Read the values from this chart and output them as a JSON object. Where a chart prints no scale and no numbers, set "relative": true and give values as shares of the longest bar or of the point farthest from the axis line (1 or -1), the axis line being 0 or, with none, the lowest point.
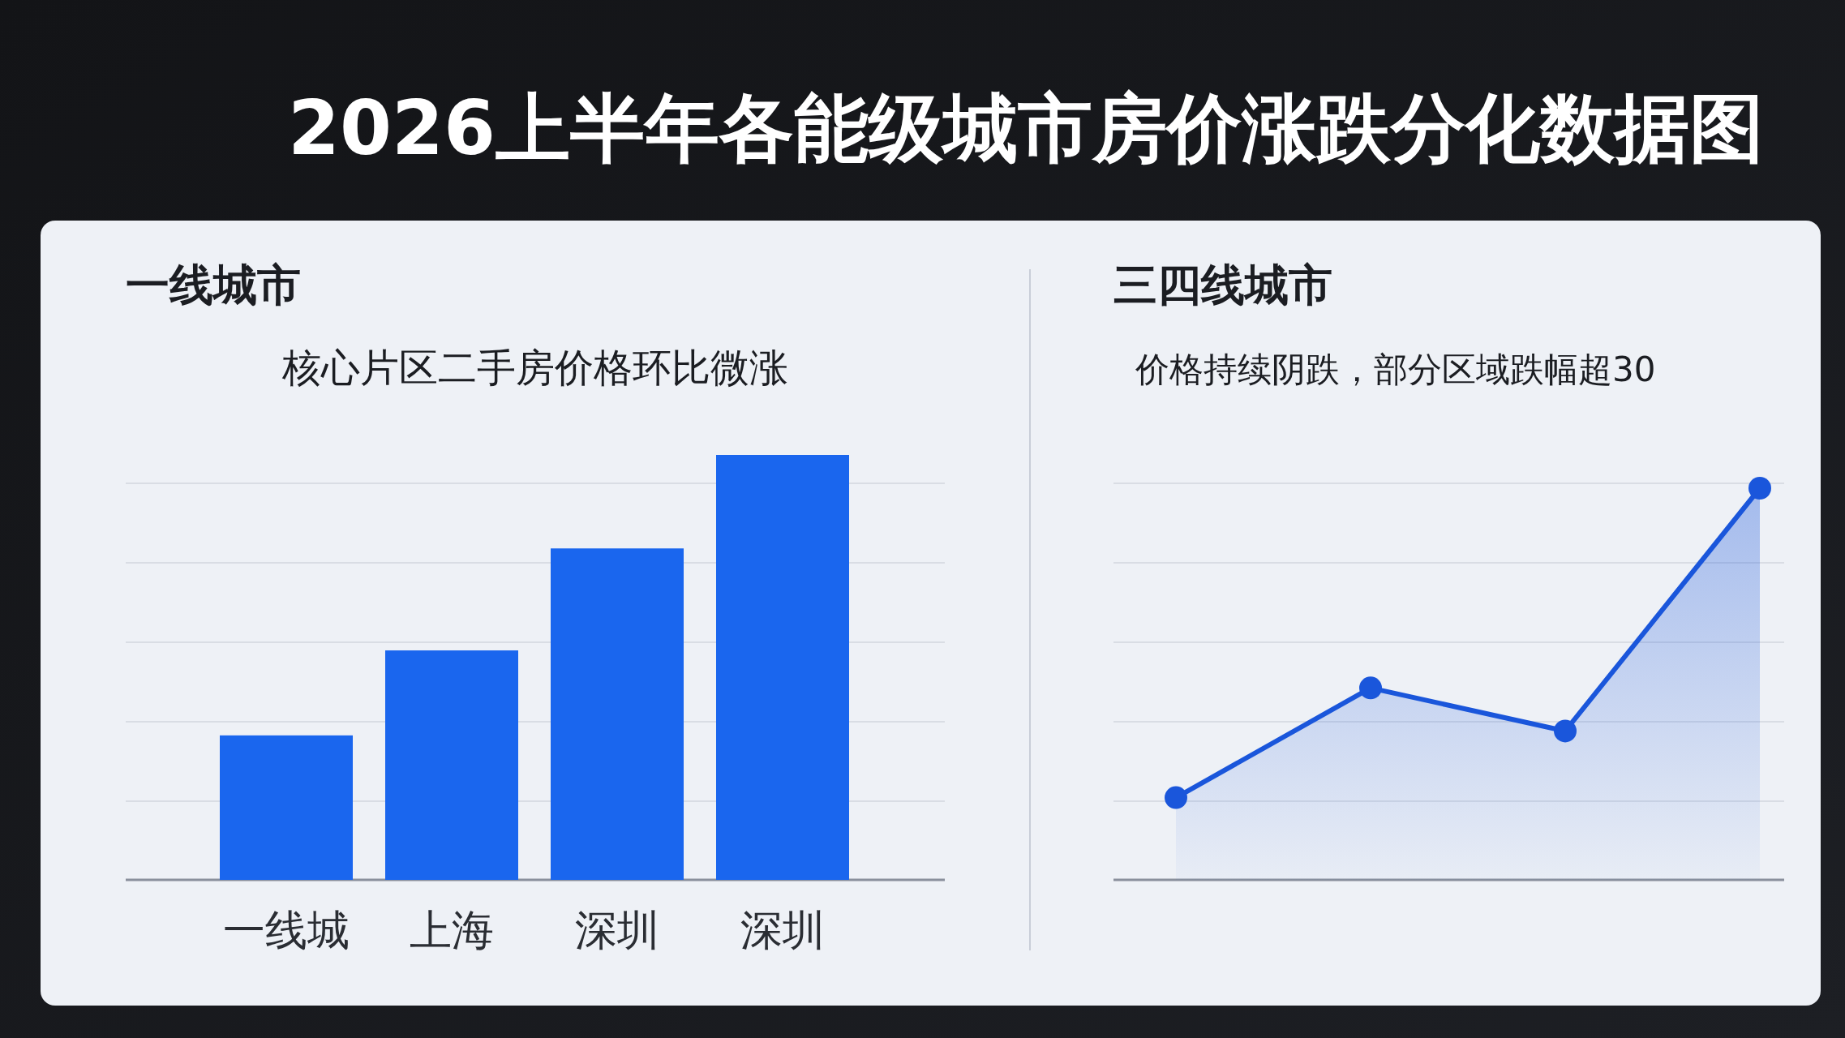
{
  "chart_data": [
    {
      "type": "other",
      "title": "2026上半年各能级城市房价涨跌分化数据图"
    },
    {
      "type": "bar",
      "title": "一线城市",
      "subtitle": "核心片区二手房价格环比微涨",
      "categories": [
        "一线城",
        "上海",
        "深圳",
        "深圳"
      ],
      "values": [
        0.34,
        0.54,
        0.78,
        1.0
      ],
      "color": "#1a66ee",
      "relative": true,
      "grid": true
    },
    {
      "type": "area",
      "title": "三四线城市",
      "subtitle": "价格持续阴跌，部分区域跌幅超30",
      "categories": [
        null,
        null,
        null,
        null
      ],
      "values": [
        0.21,
        0.49,
        0.38,
        1.0
      ],
      "color": "#1a56db",
      "relative": true,
      "grid": true,
      "marker": "circle"
    }
  ]
}
